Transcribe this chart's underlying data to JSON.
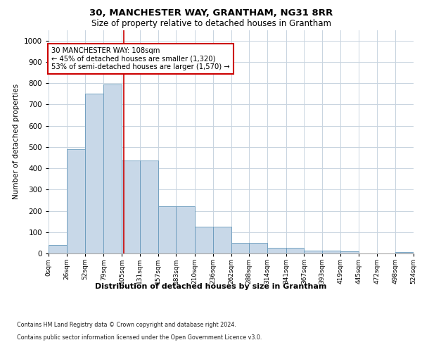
{
  "title": "30, MANCHESTER WAY, GRANTHAM, NG31 8RR",
  "subtitle": "Size of property relative to detached houses in Grantham",
  "xlabel": "Distribution of detached houses by size in Grantham",
  "ylabel": "Number of detached properties",
  "bin_edges": [
    0,
    26,
    52,
    79,
    105,
    131,
    157,
    183,
    210,
    236,
    262,
    288,
    314,
    341,
    367,
    393,
    419,
    445,
    472,
    498,
    524
  ],
  "bin_labels": [
    "0sqm",
    "26sqm",
    "52sqm",
    "79sqm",
    "105sqm",
    "131sqm",
    "157sqm",
    "183sqm",
    "210sqm",
    "236sqm",
    "262sqm",
    "288sqm",
    "314sqm",
    "341sqm",
    "367sqm",
    "393sqm",
    "419sqm",
    "445sqm",
    "472sqm",
    "498sqm",
    "524sqm"
  ],
  "bar_heights": [
    40,
    490,
    750,
    795,
    435,
    435,
    220,
    220,
    125,
    125,
    50,
    50,
    25,
    25,
    12,
    12,
    10,
    0,
    0,
    8
  ],
  "property_value": 108,
  "bar_color": "#c8d8e8",
  "bar_edge_color": "#6699bb",
  "line_color": "#cc0000",
  "annotation_text": "30 MANCHESTER WAY: 108sqm\n← 45% of detached houses are smaller (1,320)\n53% of semi-detached houses are larger (1,570) →",
  "annotation_box_color": "#ffffff",
  "annotation_box_edge": "#cc0000",
  "ylim": [
    0,
    1050
  ],
  "yticks": [
    0,
    100,
    200,
    300,
    400,
    500,
    600,
    700,
    800,
    900,
    1000
  ],
  "footer1": "Contains HM Land Registry data © Crown copyright and database right 2024.",
  "footer2": "Contains public sector information licensed under the Open Government Licence v3.0."
}
